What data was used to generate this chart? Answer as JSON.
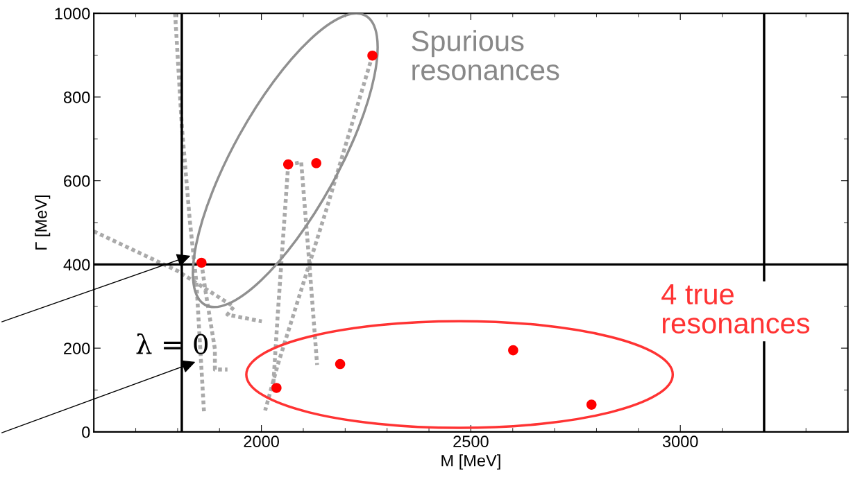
{
  "chart_data": {
    "type": "scatter",
    "xlabel": "M [MeV]",
    "ylabel": "Γ [MeV]",
    "xlim": [
      1600,
      3400
    ],
    "xticks": [
      2000,
      2500,
      3000
    ],
    "ylim": [
      0,
      1000
    ],
    "yticks": [
      0,
      200,
      400,
      600,
      800,
      1000
    ],
    "grid": false,
    "marker": "circle",
    "series": [
      {
        "type": "line",
        "color": "#aaaaaa",
        "line_style": "dotted",
        "marker": "none",
        "x": [
          1794,
          1810,
          1829,
          1845,
          1863
        ],
        "values": [
          1000,
          731,
          506,
          355,
          47
        ]
      },
      {
        "type": "line",
        "color": "#aaaaaa",
        "line_style": "dotted",
        "marker": "none",
        "x": [
          1600,
          1799,
          1934,
          1919,
          2001
        ],
        "values": [
          479,
          385,
          299,
          280,
          264
        ]
      },
      {
        "type": "line",
        "color": "#aaaaaa",
        "line_style": "dotted",
        "marker": "none",
        "x": [
          1857,
          1866,
          1889,
          1889,
          1919
        ],
        "values": [
          404,
          340,
          198,
          149,
          149
        ]
      },
      {
        "type": "line",
        "color": "#aaaaaa",
        "line_style": "dotted",
        "marker": "none",
        "x": [
          2064,
          2039,
          2028
        ],
        "values": [
          639,
          280,
          107
        ]
      },
      {
        "type": "line",
        "color": "#aaaaaa",
        "line_style": "dotted",
        "marker": "none",
        "x": [
          2064,
          2084,
          2095,
          2114,
          2133
        ],
        "values": [
          639,
          642,
          645,
          408,
          160
        ]
      },
      {
        "type": "line",
        "color": "#aaaaaa",
        "line_style": "dotted",
        "marker": "none",
        "x": [
          2265,
          2152,
          2039,
          2009
        ],
        "values": [
          899,
          521,
          160,
          51
        ]
      },
      {
        "color": "#ff0000",
        "x": [
          1857,
          2064,
          2131,
          2265,
          2036,
          2188,
          2601,
          2788
        ],
        "values": [
          404,
          639,
          642,
          899,
          105,
          162,
          195,
          65
        ]
      }
    ],
    "ref_lines": [
      {
        "axis": "x",
        "value": 1810,
        "color": "#000000"
      },
      {
        "axis": "x",
        "value": 3200,
        "color": "#000000"
      },
      {
        "axis": "y",
        "value": 400,
        "color": "#000000"
      }
    ],
    "annotations": [
      "Spurious resonances",
      "4 true resonances",
      "λ = 0"
    ]
  }
}
